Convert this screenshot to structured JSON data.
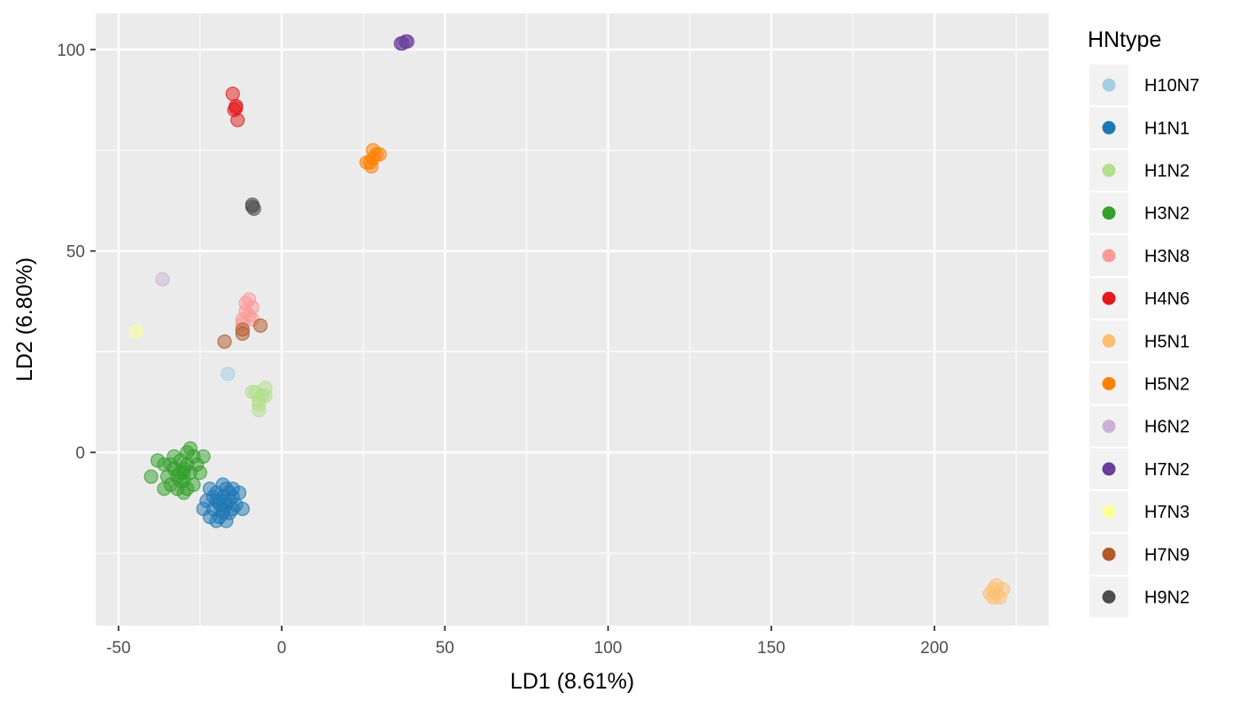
{
  "chart_data": {
    "type": "scatter",
    "xlabel": "LD1 (8.61%)",
    "ylabel": "LD2 (6.80%)",
    "xlim": [
      -57,
      235
    ],
    "ylim": [
      -43,
      109
    ],
    "xticks": [
      -50,
      0,
      50,
      100,
      150,
      200
    ],
    "xtick_labels": [
      "-50",
      "0",
      "50",
      "100",
      "150",
      "200"
    ],
    "yticks": [
      0,
      50,
      100
    ],
    "ytick_labels": [
      "0",
      "50",
      "100"
    ],
    "grid": true,
    "legend": {
      "title": "HNtype",
      "placement": "right"
    },
    "series": [
      {
        "name": "H10N7",
        "color": "#A6CEE3",
        "points": [
          [
            -16.5,
            19.5
          ]
        ]
      },
      {
        "name": "H1N1",
        "color": "#1F78B4",
        "points": [
          [
            -19,
            -12
          ],
          [
            -18,
            -11
          ],
          [
            -17,
            -13
          ],
          [
            -20,
            -10
          ],
          [
            -16,
            -12
          ],
          [
            -21,
            -14
          ],
          [
            -18,
            -15
          ],
          [
            -15,
            -11
          ],
          [
            -22,
            -9
          ],
          [
            -17,
            -9
          ],
          [
            -19,
            -16
          ],
          [
            -14,
            -13
          ],
          [
            -23,
            -12
          ],
          [
            -16,
            -15
          ],
          [
            -20,
            -17
          ],
          [
            -13,
            -10
          ],
          [
            -24,
            -14
          ],
          [
            -18,
            -8
          ],
          [
            -15,
            -14
          ],
          [
            -21,
            -11
          ],
          [
            -12,
            -14
          ],
          [
            -17,
            -17
          ],
          [
            -22,
            -16
          ],
          [
            -19,
            -13
          ],
          [
            -16,
            -10
          ],
          [
            -20,
            -12
          ],
          [
            -18,
            -14
          ],
          [
            -15,
            -9
          ]
        ]
      },
      {
        "name": "H1N2",
        "color": "#B2DF8A",
        "points": [
          [
            -7,
            13
          ],
          [
            -8,
            15
          ],
          [
            -6,
            14
          ],
          [
            -7,
            12
          ],
          [
            -5,
            16
          ],
          [
            -9,
            15
          ],
          [
            -7,
            10.5
          ],
          [
            -5,
            14
          ]
        ]
      },
      {
        "name": "H3N2",
        "color": "#33A02C",
        "points": [
          [
            -31,
            -5
          ],
          [
            -30,
            -4
          ],
          [
            -32,
            -6
          ],
          [
            -29,
            -3
          ],
          [
            -33,
            -4
          ],
          [
            -30,
            -7
          ],
          [
            -28,
            -5
          ],
          [
            -34,
            -8
          ],
          [
            -31,
            -2
          ],
          [
            -27,
            -8
          ],
          [
            -33,
            -1
          ],
          [
            -29,
            0
          ],
          [
            -35,
            -6
          ],
          [
            -26,
            -3
          ],
          [
            -32,
            -9
          ],
          [
            -28,
            1
          ],
          [
            -36,
            -3
          ],
          [
            -25,
            -5
          ],
          [
            -30,
            -10
          ],
          [
            -38,
            -2
          ],
          [
            -40,
            -6
          ],
          [
            -36,
            -9
          ],
          [
            -24,
            -1
          ],
          [
            -27,
            -1
          ],
          [
            -31,
            -7
          ],
          [
            -29,
            -9
          ],
          [
            -34,
            -3
          ],
          [
            -30,
            -5
          ]
        ]
      },
      {
        "name": "H3N8",
        "color": "#FB9A99",
        "points": [
          [
            -11,
            35
          ],
          [
            -10,
            34
          ],
          [
            -12,
            33
          ],
          [
            -9,
            36
          ],
          [
            -11,
            37
          ],
          [
            -10,
            38
          ],
          [
            -12,
            32
          ],
          [
            -9,
            33
          ]
        ]
      },
      {
        "name": "H4N6",
        "color": "#E31A1C",
        "points": [
          [
            -14,
            86
          ],
          [
            -14.5,
            85
          ],
          [
            -15,
            89
          ],
          [
            -13.5,
            82.5
          ],
          [
            -14,
            85.5
          ]
        ]
      },
      {
        "name": "H5N1",
        "color": "#FDBF6F",
        "points": [
          [
            219,
            -35
          ],
          [
            218,
            -34
          ],
          [
            220,
            -36
          ],
          [
            217,
            -35
          ],
          [
            221,
            -34
          ],
          [
            219,
            -33
          ],
          [
            218,
            -36
          ]
        ]
      },
      {
        "name": "H5N2",
        "color": "#FF7F00",
        "points": [
          [
            28,
            73
          ],
          [
            27,
            72
          ],
          [
            29,
            74
          ],
          [
            28,
            75
          ],
          [
            26,
            72
          ],
          [
            30,
            74
          ],
          [
            27.5,
            71
          ]
        ]
      },
      {
        "name": "H6N2",
        "color": "#CAB2D6",
        "points": [
          [
            -36.5,
            43
          ]
        ]
      },
      {
        "name": "H7N2",
        "color": "#6A3D9A",
        "points": [
          [
            37,
            101.5
          ],
          [
            38,
            102
          ],
          [
            36.5,
            101.5
          ],
          [
            38.5,
            102
          ]
        ]
      },
      {
        "name": "H7N3",
        "color": "#FFFF99",
        "points": [
          [
            -44.5,
            30
          ]
        ]
      },
      {
        "name": "H7N9",
        "color": "#B15928",
        "points": [
          [
            -12,
            29.5
          ],
          [
            -12,
            30.5
          ],
          [
            -17.5,
            27.5
          ],
          [
            -6.5,
            31.5
          ]
        ]
      },
      {
        "name": "H9N2",
        "color": "#4D4D4D",
        "points": [
          [
            -9,
            61
          ],
          [
            -8.5,
            60.5
          ],
          [
            -9,
            61.5
          ]
        ]
      }
    ]
  }
}
